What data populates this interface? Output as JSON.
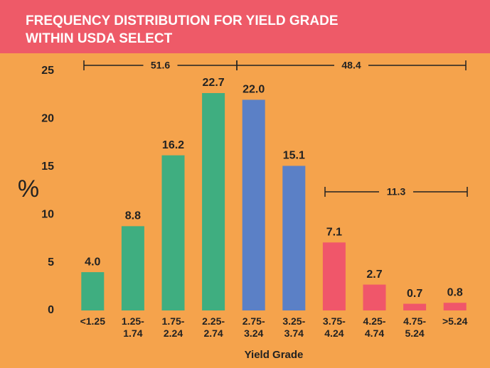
{
  "chart_data": {
    "type": "bar",
    "title_lines": [
      "FREQUENCY DISTRIBUTION FOR YIELD GRADE",
      "WITHIN USDA SELECT"
    ],
    "y_label": "%",
    "x_label": "Yield Grade",
    "categories": [
      "<1.25",
      "1.25-\n1.74",
      "1.75-\n2.24",
      "2.25-\n2.74",
      "2.75-\n3.24",
      "3.25-\n3.74",
      "3.75-\n4.24",
      "4.25-\n4.74",
      "4.75-\n5.24",
      ">5.24"
    ],
    "values": [
      4.0,
      8.8,
      16.2,
      22.7,
      22.0,
      15.1,
      7.1,
      2.7,
      0.7,
      0.8
    ],
    "value_labels": [
      "4.0",
      "8.8",
      "16.2",
      "22.7",
      "22.0",
      "15.1",
      "7.1",
      "2.7",
      "0.7",
      "0.8"
    ],
    "colors": [
      "#3fae80",
      "#3fae80",
      "#3fae80",
      "#3fae80",
      "#5b80c6",
      "#5b80c6",
      "#f0566a",
      "#f0566a",
      "#f0566a",
      "#f0566a"
    ],
    "annotations": [
      51.6,
      48.4,
      11.3
    ],
    "ylim": [
      0,
      25
    ],
    "yticks": [
      0,
      5,
      10,
      15,
      20,
      25
    ],
    "grid": false
  }
}
